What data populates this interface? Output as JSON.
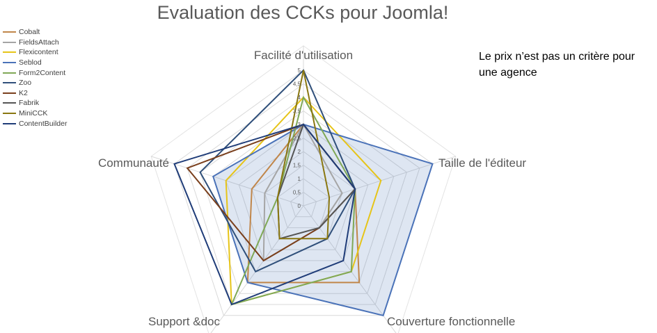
{
  "chart_data": {
    "type": "radar",
    "title": "Evaluation des CCKs pour Joomla!",
    "axes": [
      "Facilité d'utilisation",
      "Taille de l'éditeur",
      "Couverture fonctionnelle",
      "Support &doc",
      "Communauté"
    ],
    "rmax": 5,
    "ticks": [
      "0",
      "0,5",
      "1",
      "1,5",
      "2",
      "2,5",
      "3",
      "3,5",
      "4",
      "4,5",
      "5"
    ],
    "tick_values": [
      0,
      0.5,
      1,
      1.5,
      2,
      2.5,
      3,
      3.5,
      4,
      4.5,
      5
    ],
    "grid": true,
    "legend_position": "top-left",
    "series": [
      {
        "name": "Cobalt",
        "color": "#c0864a",
        "fill": false,
        "values": [
          3.0,
          2.0,
          3.5,
          3.5,
          2.0
        ]
      },
      {
        "name": "FieldsAttach",
        "color": "#a5a5a5",
        "fill": false,
        "values": [
          3.0,
          1.5,
          1.0,
          2.5,
          1.5
        ]
      },
      {
        "name": "Flexicontent",
        "color": "#e6c418",
        "fill": false,
        "values": [
          4.0,
          3.0,
          3.0,
          4.5,
          3.0
        ]
      },
      {
        "name": "Seblod",
        "color": "#4a72b8",
        "fill": true,
        "values": [
          3.0,
          5.0,
          5.0,
          3.5,
          3.5
        ]
      },
      {
        "name": "Form2Content",
        "color": "#7fa856",
        "fill": false,
        "values": [
          4.0,
          2.0,
          3.0,
          4.5,
          1.0
        ]
      },
      {
        "name": "Zoo",
        "color": "#2f4f7a",
        "fill": false,
        "values": [
          5.0,
          2.0,
          1.5,
          3.0,
          4.0
        ]
      },
      {
        "name": "K2",
        "color": "#7a3f1c",
        "fill": false,
        "values": [
          3.0,
          2.0,
          1.0,
          2.5,
          4.5
        ]
      },
      {
        "name": "Fabrik",
        "color": "#555555",
        "fill": false,
        "values": [
          3.0,
          2.0,
          1.0,
          1.5,
          1.0
        ]
      },
      {
        "name": "MiniCCK",
        "color": "#8a7710",
        "fill": false,
        "values": [
          5.0,
          1.0,
          1.5,
          1.5,
          1.0
        ]
      },
      {
        "name": "ContentBuilder",
        "color": "#1f3c78",
        "fill": false,
        "values": [
          3.0,
          2.0,
          2.5,
          4.5,
          5.0
        ]
      }
    ]
  },
  "note": "Le prix n’est pas un critère pour une agence"
}
